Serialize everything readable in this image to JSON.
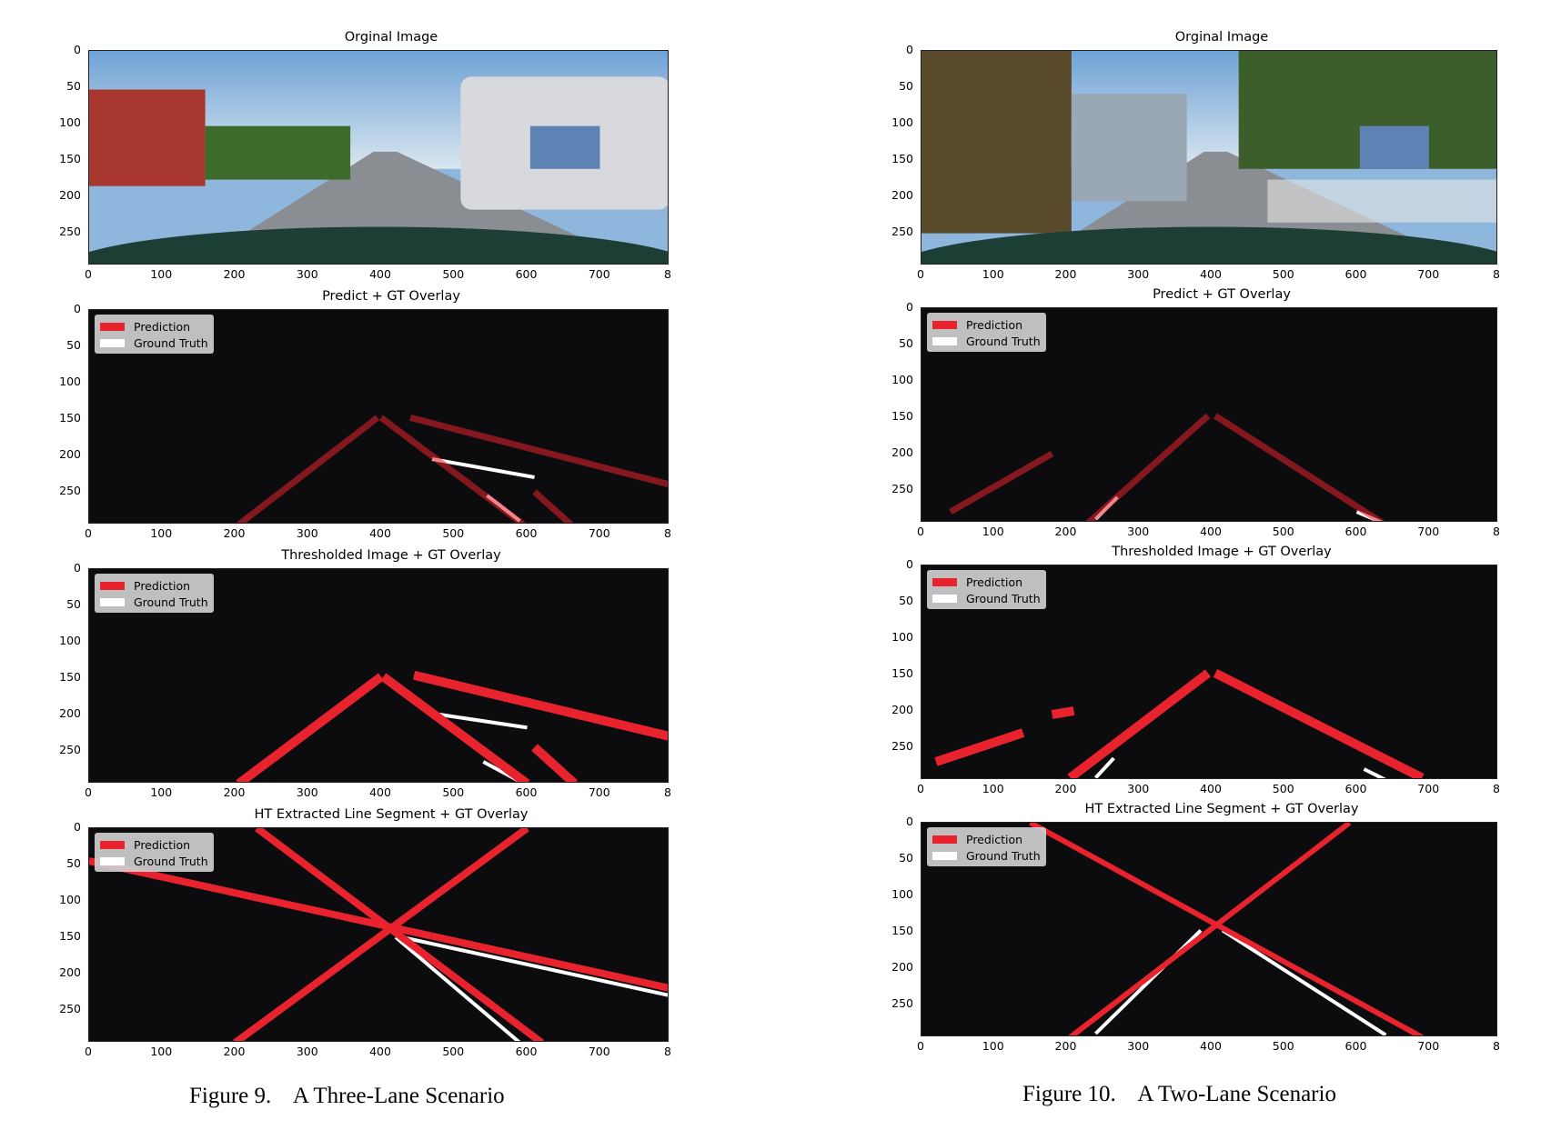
{
  "figures": [
    {
      "caption": "Figure 9.    A Three-Lane Scenario",
      "panels": [
        {
          "title": "Orginal Image",
          "legend": false
        },
        {
          "title": "Predict + GT Overlay",
          "legend": true
        },
        {
          "title": "Thresholded Image + GT Overlay",
          "legend": true
        },
        {
          "title": "HT Extracted Line Segment + GT Overlay",
          "legend": true
        }
      ]
    },
    {
      "caption": "Figure 10.    A Two-Lane Scenario",
      "panels": [
        {
          "title": "Orginal Image",
          "legend": false
        },
        {
          "title": "Predict + GT Overlay",
          "legend": true
        },
        {
          "title": "Thresholded Image + GT Overlay",
          "legend": true
        },
        {
          "title": "HT Extracted Line Segment + GT Overlay",
          "legend": true
        }
      ]
    }
  ],
  "legend": {
    "prediction_label": "Prediction",
    "ground_truth_label": "Ground Truth",
    "prediction_color": "#e8232d",
    "ground_truth_color": "#ffffff"
  },
  "axes": {
    "x_ticks": [
      "0",
      "100",
      "200",
      "300",
      "400",
      "500",
      "600",
      "700",
      "8"
    ],
    "y_ticks": [
      "0",
      "50",
      "100",
      "150",
      "200",
      "250"
    ]
  }
}
